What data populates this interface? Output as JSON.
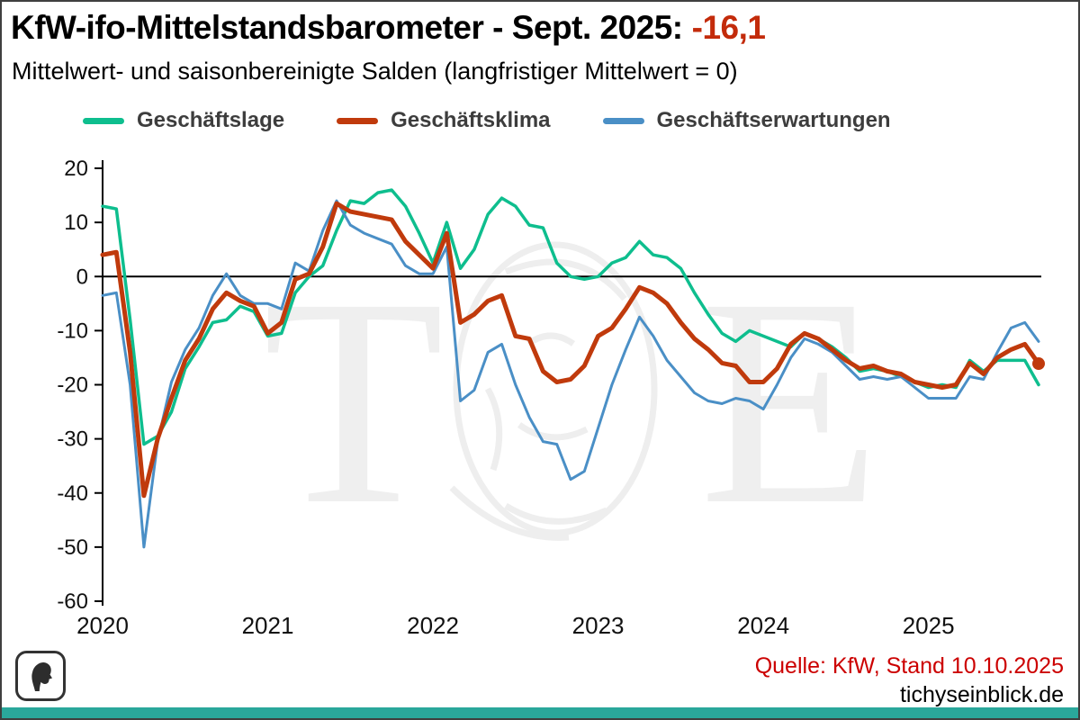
{
  "header": {
    "title": "KfW-ifo-Mittelstandsbarometer - Sept. 2025:",
    "title_value": "-16,1",
    "subtitle": "Mittelwert- und saisonbereinigte Salden (langfristiger Mittelwert = 0)"
  },
  "legend": [
    {
      "label": "Geschäftslage",
      "color": "#0ebe8e"
    },
    {
      "label": "Geschäftsklima",
      "color": "#c03a0c"
    },
    {
      "label": "Geschäftserwartungen",
      "color": "#4a8fc6"
    }
  ],
  "watermark": {
    "left_letter": "T",
    "right_letter": "E"
  },
  "chart_data": {
    "type": "line",
    "title": "KfW-ifo-Mittelstandsbarometer - Sept. 2025: -16,1",
    "subtitle": "Mittelwert- und saisonbereinigte Salden (langfristiger Mittelwert = 0)",
    "frequency": "monthly",
    "x_start": "2020-01",
    "x_end": "2025-09",
    "x_tick_labels": [
      "2020",
      "2021",
      "2022",
      "2023",
      "2024",
      "2025"
    ],
    "y_ticks": [
      20,
      10,
      0,
      -10,
      -20,
      -30,
      -40,
      -50,
      -60
    ],
    "ylim": [
      -60,
      20
    ],
    "zero_line": true,
    "grid": false,
    "legend_position": "top",
    "series": [
      {
        "id": "geschaeftslage",
        "name": "Geschäftslage",
        "color": "#0ebe8e",
        "width": 3.5,
        "values": [
          13,
          12.5,
          -8,
          -31,
          -29.5,
          -25,
          -17,
          -13,
          -8.5,
          -8,
          -5.5,
          -6.5,
          -11,
          -10.5,
          -3,
          0,
          2,
          8.5,
          14,
          13.5,
          15.5,
          16,
          13,
          8,
          2.5,
          10,
          1.5,
          5,
          11.5,
          14.5,
          13,
          9.5,
          9,
          2.5,
          0,
          -0.5,
          0,
          2.5,
          3.5,
          6.5,
          4,
          3.5,
          1.5,
          -3,
          -7,
          -10.5,
          -12,
          -10,
          -11,
          -12,
          -13,
          -10.5,
          -11.5,
          -13,
          -15,
          -17.5,
          -17,
          -17.5,
          -18.5,
          -19.5,
          -20.5,
          -20,
          -20.5,
          -15.5,
          -17.5,
          -15.5,
          -15.5,
          -15.5,
          -20
        ]
      },
      {
        "id": "geschaeftserwartungen",
        "name": "Geschäftserwartungen",
        "color": "#4a8fc6",
        "width": 3,
        "values": [
          -3.5,
          -3,
          -20,
          -50,
          -30.5,
          -19.5,
          -13.5,
          -9.5,
          -3.5,
          0.5,
          -3.5,
          -5,
          -5,
          -6,
          2.5,
          1,
          8.5,
          14,
          9.5,
          8,
          7,
          6,
          2,
          0.5,
          0.5,
          5.5,
          -23,
          -21,
          -14,
          -12.5,
          -20,
          -26,
          -30.5,
          -31,
          -37.5,
          -36,
          -28,
          -20,
          -13.5,
          -7.5,
          -11,
          -15.5,
          -18.5,
          -21.5,
          -23,
          -23.5,
          -22.5,
          -23,
          -24.5,
          -20,
          -15,
          -11.5,
          -12.5,
          -14,
          -16.5,
          -19,
          -18.5,
          -19,
          -18.5,
          -20.5,
          -22.5,
          -22.5,
          -22.5,
          -18.5,
          -19,
          -14,
          -9.5,
          -8.5,
          -12
        ]
      },
      {
        "id": "geschaeftsklima",
        "name": "Geschäftsklima",
        "color": "#c03a0c",
        "width": 5,
        "end_marker": true,
        "values": [
          4,
          4.5,
          -14,
          -40.5,
          -30,
          -22.5,
          -15.5,
          -11.5,
          -6,
          -3,
          -4.5,
          -5.5,
          -10.5,
          -8.5,
          -0.5,
          0.5,
          5.5,
          13.5,
          12,
          11.5,
          11,
          10.5,
          6.5,
          4,
          1.5,
          8,
          -8.5,
          -7,
          -4.5,
          -3.5,
          -11,
          -11.5,
          -17.5,
          -19.5,
          -19,
          -16.5,
          -11,
          -9.5,
          -6,
          -2,
          -3,
          -5,
          -8.5,
          -11.5,
          -13.5,
          -16,
          -16.5,
          -19.5,
          -19.5,
          -17,
          -12.5,
          -10.5,
          -11.5,
          -13.5,
          -15.5,
          -17,
          -16.5,
          -17.5,
          -18,
          -19.5,
          -20,
          -20.5,
          -20,
          -16,
          -18,
          -15,
          -13.5,
          -12.5,
          -16.1
        ]
      }
    ]
  },
  "footer": {
    "source": "Quelle: KfW, Stand 10.10.2025",
    "site": "tichyseinblick.de"
  },
  "colors": {
    "headline_value": "#c32b0b",
    "source_text": "#cc0000",
    "brand_bar": "#2aa79b",
    "axis_text": "#111111",
    "legend_text": "#3d3d3d"
  }
}
